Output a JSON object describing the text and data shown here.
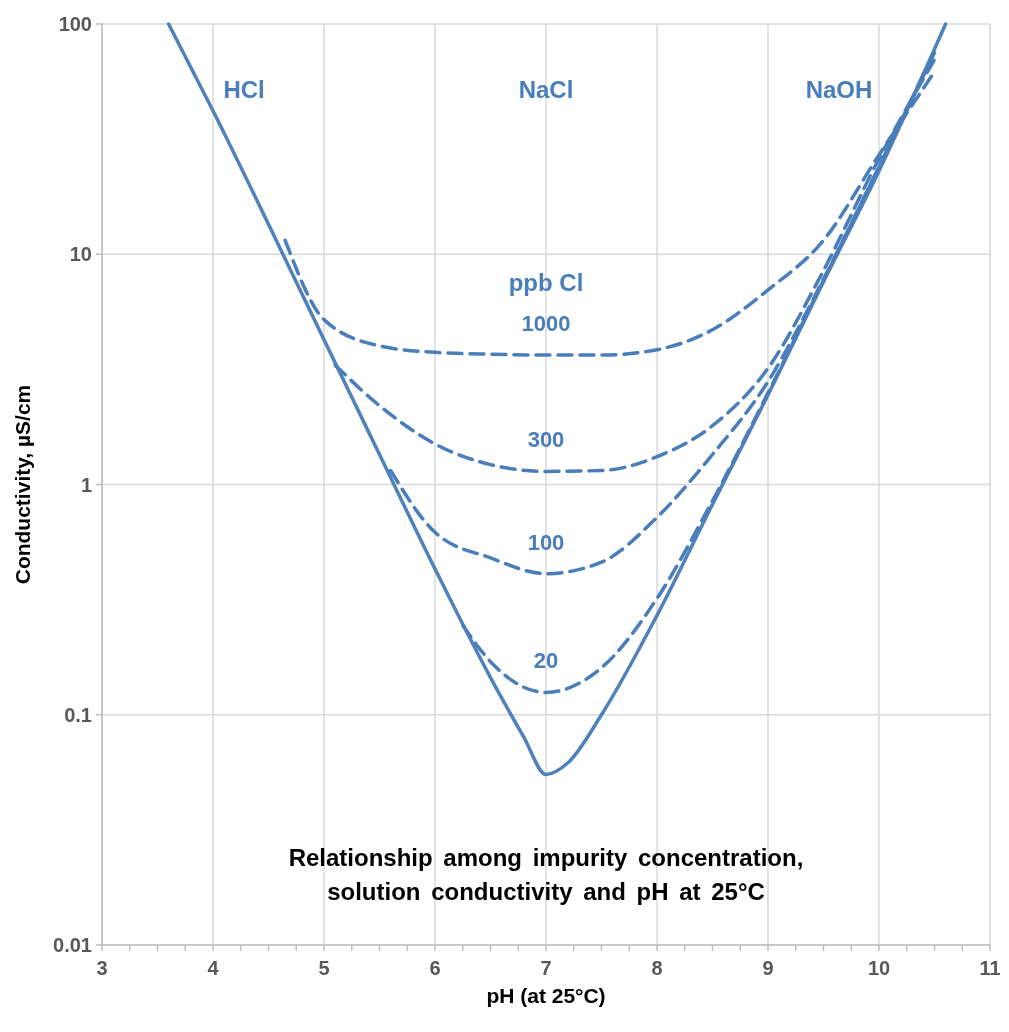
{
  "chart_data": {
    "type": "line",
    "title": "Relationship among impurity concentration, solution conductivity and pH at 25°C",
    "xlabel": "pH (at 25°C)",
    "ylabel": "Conductivity, µS/cm",
    "log": "y",
    "grid": true,
    "xlim": [
      3,
      11
    ],
    "ylim": [
      0.01,
      100
    ],
    "xticks": [
      3,
      {
        "value": 3.25,
        "label": null
      },
      {
        "value": 3.5,
        "label": null
      },
      {
        "value": 3.75,
        "label": null
      },
      4,
      {
        "value": 4.25,
        "label": null
      },
      {
        "value": 4.5,
        "label": null
      },
      {
        "value": 4.75,
        "label": null
      },
      5,
      {
        "value": 5.25,
        "label": null
      },
      {
        "value": 5.5,
        "label": null
      },
      {
        "value": 5.75,
        "label": null
      },
      6,
      {
        "value": 6.25,
        "label": null
      },
      {
        "value": 6.5,
        "label": null
      },
      {
        "value": 6.75,
        "label": null
      },
      7,
      {
        "value": 7.25,
        "label": null
      },
      {
        "value": 7.5,
        "label": null
      },
      {
        "value": 7.75,
        "label": null
      },
      8,
      {
        "value": 8.25,
        "label": null
      },
      {
        "value": 8.5,
        "label": null
      },
      {
        "value": 8.75,
        "label": null
      },
      9,
      {
        "value": 9.25,
        "label": null
      },
      {
        "value": 9.5,
        "label": null
      },
      {
        "value": 9.75,
        "label": null
      },
      10,
      {
        "value": 10.25,
        "label": null
      },
      {
        "value": 10.5,
        "label": null
      },
      {
        "value": 10.75,
        "label": null
      },
      11
    ],
    "yticks": [
      0.01,
      0.1,
      1,
      10,
      100
    ],
    "series": [
      {
        "color": "#4f81bd",
        "line_style": "solid",
        "x": [
          3.6,
          4,
          4.5,
          5,
          5.5,
          6,
          6.5,
          6.8,
          7,
          7.2,
          7.5,
          8,
          8.5,
          9,
          9.5,
          10,
          10.6
        ],
        "values": [
          100,
          42,
          13.5,
          4.25,
          1.35,
          0.43,
          0.145,
          0.08,
          0.055,
          0.062,
          0.1,
          0.27,
          0.82,
          2.45,
          7.6,
          23,
          100
        ]
      },
      {
        "name": "1000",
        "color": "#4a7ebb",
        "line_style": "dashed",
        "x": [
          4.65,
          5,
          5.5,
          6,
          6.5,
          7,
          7.5,
          8,
          8.5,
          9,
          9.5,
          10,
          10.5
        ],
        "values": [
          11.5,
          5.2,
          4.0,
          3.75,
          3.68,
          3.65,
          3.65,
          3.85,
          4.7,
          7.0,
          11.5,
          27,
          62
        ]
      },
      {
        "name": "300",
        "color": "#4a7ebb",
        "line_style": "dashed",
        "x": [
          5.1,
          5.5,
          6,
          6.5,
          7,
          7.5,
          8,
          8.5,
          9,
          9.5,
          10,
          10.5
        ],
        "values": [
          3.3,
          2.2,
          1.5,
          1.22,
          1.14,
          1.15,
          1.32,
          1.8,
          3.2,
          8.5,
          26,
          70
        ]
      },
      {
        "name": "100",
        "color": "#4a7ebb",
        "line_style": "dashed",
        "x": [
          5.6,
          6,
          6.5,
          7,
          7.5,
          8,
          8.5,
          9,
          9.5,
          10,
          10.5
        ],
        "values": [
          1.15,
          0.62,
          0.48,
          0.41,
          0.46,
          0.72,
          1.35,
          2.8,
          7.8,
          24,
          75
        ]
      },
      {
        "name": "20",
        "color": "#4a7ebb",
        "line_style": "dashed",
        "x": [
          6.25,
          6.5,
          7,
          7.5,
          8,
          8.5,
          9,
          9.5,
          10,
          10.5
        ],
        "values": [
          0.245,
          0.17,
          0.125,
          0.16,
          0.32,
          0.85,
          2.5,
          7.7,
          24,
          76
        ]
      }
    ],
    "annotations": [
      "HCl",
      "NaCl",
      "NaOH",
      "ppb Cl"
    ]
  }
}
